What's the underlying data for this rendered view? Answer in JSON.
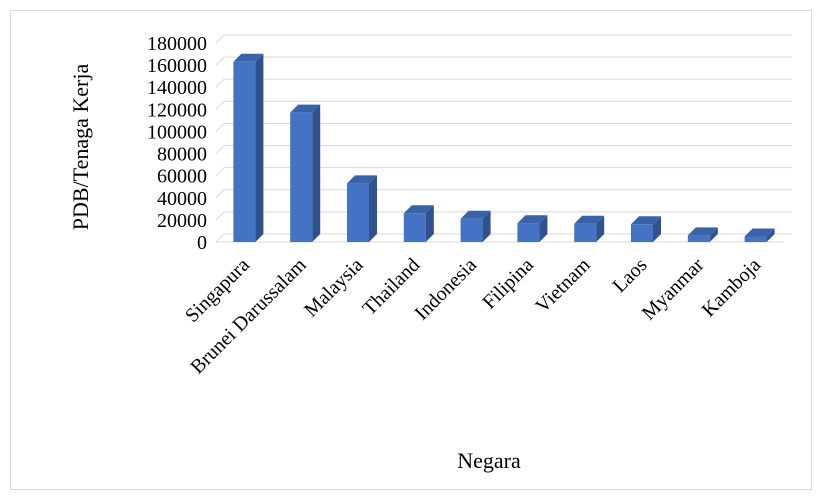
{
  "chart_data": {
    "type": "bar",
    "style": "3d-column",
    "title": "",
    "xlabel": "Negara",
    "ylabel": "PDB/Tenaga Kerja",
    "ylim": [
      0,
      180000
    ],
    "yticks": [
      0,
      20000,
      40000,
      60000,
      80000,
      100000,
      120000,
      140000,
      160000,
      180000
    ],
    "grid": true,
    "categories": [
      "Singapura",
      "Brunei Darussalam",
      "Malaysia",
      "Thailand",
      "Indonesia",
      "Filipina",
      "Vietnam",
      "Laos",
      "Myanmar",
      "Kamboja"
    ],
    "values": [
      163000,
      117000,
      53000,
      26000,
      21000,
      17000,
      16500,
      16000,
      6000,
      5000
    ],
    "colors": {
      "bar_front": "#4472c4",
      "bar_side": "#2f528f",
      "bar_top": "#3a62a8",
      "grid": "#d9d9d9"
    }
  }
}
